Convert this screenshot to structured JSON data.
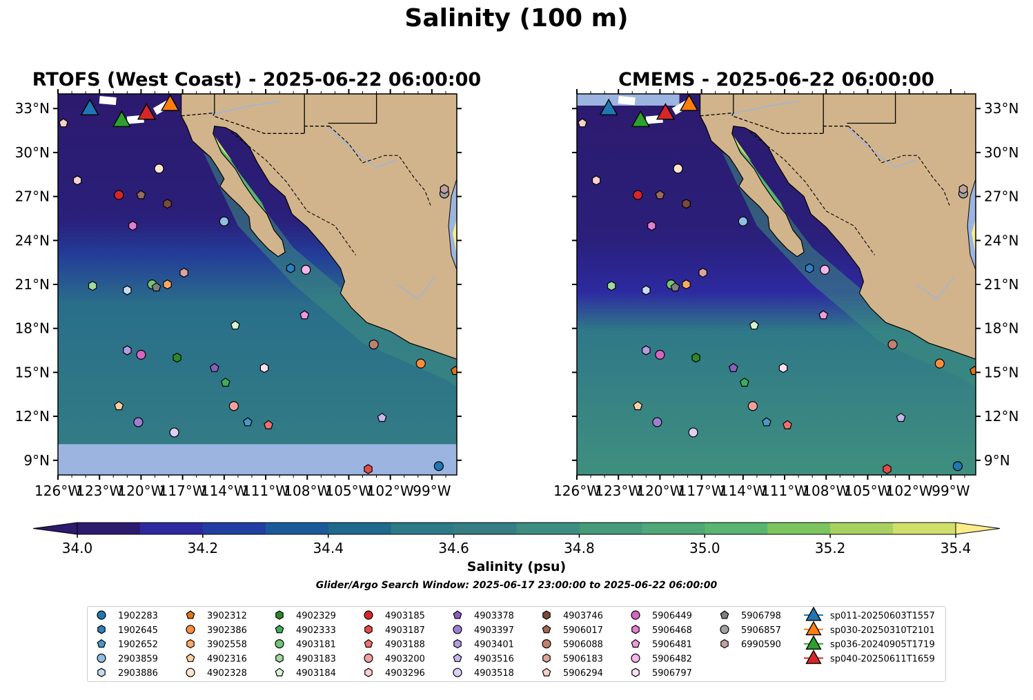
{
  "title": "Salinity (100 m)",
  "panels": [
    {
      "title": "RTOFS (West Coast) - 2025-06-22 06:00:00"
    },
    {
      "title": "CMEMS - 2025-06-22 06:00:00"
    }
  ],
  "axes": {
    "lon_ticks": [
      "126°W",
      "123°W",
      "120°W",
      "117°W",
      "114°W",
      "111°W",
      "108°W",
      "105°W",
      "102°W",
      "99°W"
    ],
    "lon_values": [
      -126,
      -123,
      -120,
      -117,
      -114,
      -111,
      -108,
      -105,
      -102,
      -99
    ],
    "lat_ticks": [
      "9°N",
      "12°N",
      "15°N",
      "18°N",
      "21°N",
      "24°N",
      "27°N",
      "30°N",
      "33°N"
    ],
    "lat_values": [
      9,
      12,
      15,
      18,
      21,
      24,
      27,
      30,
      33
    ],
    "lon_range": [
      -126,
      -97.2
    ],
    "lat_range": [
      8,
      34
    ]
  },
  "colorbar": {
    "label": "Salinity (psu)",
    "ticks": [
      "34.0",
      "34.2",
      "34.4",
      "34.6",
      "34.8",
      "35.0",
      "35.2",
      "35.4"
    ],
    "range": [
      34.0,
      35.4
    ],
    "extend": "both",
    "colors": [
      "#2c1a6e",
      "#2d2aa0",
      "#213fa3",
      "#1a5a9a",
      "#1f6a8c",
      "#2a7a88",
      "#347e84",
      "#3d8d80",
      "#459a7c",
      "#4fa878",
      "#5ab570",
      "#7bc45e",
      "#a8d160",
      "#cfdf6a"
    ],
    "under_color": "#2c1a6e",
    "over_color": "#fcec8a"
  },
  "colors": {
    "land": "#d2b48c",
    "nodata": "#9bb5e0",
    "border": "#000000",
    "river": "#9bb5e0"
  },
  "search_window": "Glider/Argo Search Window: 2025-06-17 23:00:00 to 2025-06-22 06:00:00",
  "floats": [
    {
      "id": "1902283",
      "color": "#1f77b4",
      "marker": "circle",
      "lon": -98.5,
      "lat": 8.6
    },
    {
      "id": "1902645",
      "color": "#2f7fc1",
      "marker": "hexagon",
      "lon": -109.2,
      "lat": 22.1
    },
    {
      "id": "1902652",
      "color": "#4a98c9",
      "marker": "pentagon",
      "lon": -112.3,
      "lat": 11.6
    },
    {
      "id": "2903859",
      "color": "#8fbfe0",
      "marker": "circle",
      "lon": -114.0,
      "lat": 25.3
    },
    {
      "id": "2903886",
      "color": "#c6dbef",
      "marker": "hexagon",
      "lon": -121.0,
      "lat": 20.6
    },
    {
      "id": "3902312",
      "color": "#e6750e",
      "marker": "pentagon",
      "lon": -97.3,
      "lat": 15.1
    },
    {
      "id": "3902386",
      "color": "#fd8d3c",
      "marker": "circle",
      "lon": -99.8,
      "lat": 15.6
    },
    {
      "id": "3902558",
      "color": "#fda963",
      "marker": "hexagon",
      "lon": -118.1,
      "lat": 21.0
    },
    {
      "id": "4902316",
      "color": "#fdd0a2",
      "marker": "pentagon",
      "lon": -121.6,
      "lat": 12.7
    },
    {
      "id": "4902328",
      "color": "#fee6ce",
      "marker": "circle",
      "lon": -118.7,
      "lat": 28.9
    },
    {
      "id": "4902329",
      "color": "#2a8a2a",
      "marker": "hexagon",
      "lon": -117.4,
      "lat": 16.0
    },
    {
      "id": "4902333",
      "color": "#41ab5d",
      "marker": "pentagon",
      "lon": -113.9,
      "lat": 14.3
    },
    {
      "id": "4903181",
      "color": "#74c476",
      "marker": "circle",
      "lon": -119.2,
      "lat": 21.0
    },
    {
      "id": "4903183",
      "color": "#a1d99b",
      "marker": "hexagon",
      "lon": -123.5,
      "lat": 20.9
    },
    {
      "id": "4903184",
      "color": "#d5f5d0",
      "marker": "pentagon",
      "lon": -113.2,
      "lat": 18.2
    },
    {
      "id": "4903185",
      "color": "#d62728",
      "marker": "circle",
      "lon": -121.6,
      "lat": 27.1
    },
    {
      "id": "4903187",
      "color": "#e34a4a",
      "marker": "hexagon",
      "lon": -103.6,
      "lat": 8.4
    },
    {
      "id": "4903188",
      "color": "#f07070",
      "marker": "pentagon",
      "lon": -110.8,
      "lat": 11.4
    },
    {
      "id": "4903200",
      "color": "#f4a0a0",
      "marker": "circle",
      "lon": -113.3,
      "lat": 12.7
    },
    {
      "id": "4903296",
      "color": "#fcd0d0",
      "marker": "hexagon",
      "lon": -124.6,
      "lat": 28.1
    },
    {
      "id": "4903378",
      "color": "#8a5fbf",
      "marker": "pentagon",
      "lon": -114.7,
      "lat": 15.3
    },
    {
      "id": "4903397",
      "color": "#9e7fcf",
      "marker": "circle",
      "lon": -120.2,
      "lat": 11.6
    },
    {
      "id": "4903401",
      "color": "#b49be0",
      "marker": "hexagon",
      "lon": -121.0,
      "lat": 16.5
    },
    {
      "id": "4903516",
      "color": "#c9b5ec",
      "marker": "pentagon",
      "lon": -102.6,
      "lat": 11.9
    },
    {
      "id": "4903518",
      "color": "#ddd0f5",
      "marker": "circle",
      "lon": -117.6,
      "lat": 10.9
    },
    {
      "id": "4903746",
      "color": "#7b4a3a",
      "marker": "hexagon",
      "lon": -118.1,
      "lat": 26.5
    },
    {
      "id": "5906017",
      "color": "#9a6a5a",
      "marker": "pentagon",
      "lon": -120.0,
      "lat": 27.1
    },
    {
      "id": "5906088",
      "color": "#c08070",
      "marker": "circle",
      "lon": -103.2,
      "lat": 16.9
    },
    {
      "id": "5906183",
      "color": "#dba59a",
      "marker": "hexagon",
      "lon": -116.9,
      "lat": 21.8
    },
    {
      "id": "5906294",
      "color": "#f5d0c4",
      "marker": "pentagon",
      "lon": -125.6,
      "lat": 32.0
    },
    {
      "id": "5906449",
      "color": "#d566c0",
      "marker": "circle",
      "lon": -120.0,
      "lat": 16.2
    },
    {
      "id": "5906468",
      "color": "#e27fd0",
      "marker": "hexagon",
      "lon": -120.6,
      "lat": 25.0
    },
    {
      "id": "5906481",
      "color": "#ee9adc",
      "marker": "pentagon",
      "lon": -108.2,
      "lat": 18.9
    },
    {
      "id": "5906482",
      "color": "#f5b5e8",
      "marker": "circle",
      "lon": -108.1,
      "lat": 22.0
    },
    {
      "id": "5906797",
      "color": "#fce0f5",
      "marker": "hexagon",
      "lon": -111.1,
      "lat": 15.3
    },
    {
      "id": "5906798",
      "color": "#7f7f7f",
      "marker": "pentagon",
      "lon": -118.9,
      "lat": 20.8
    },
    {
      "id": "5906857",
      "color": "#a0a0a0",
      "marker": "circle",
      "lon": -98.1,
      "lat": 27.2
    },
    {
      "id": "6990590",
      "color": "#c0a0a0",
      "marker": "hexagon",
      "lon": -98.1,
      "lat": 27.5
    }
  ],
  "gliders": [
    {
      "id": "sp011-20250603T1557",
      "color": "#1f77b4",
      "lon": -123.7,
      "lat": 33.0
    },
    {
      "id": "sp030-20250310T2101",
      "color": "#ff7f0e",
      "lon": -117.9,
      "lat": 33.3
    },
    {
      "id": "sp036-20240905T1719",
      "color": "#2ca02c",
      "lon": -121.4,
      "lat": 32.2
    },
    {
      "id": "sp040-20250611T1659",
      "color": "#d62728",
      "lon": -119.6,
      "lat": 32.7
    }
  ]
}
